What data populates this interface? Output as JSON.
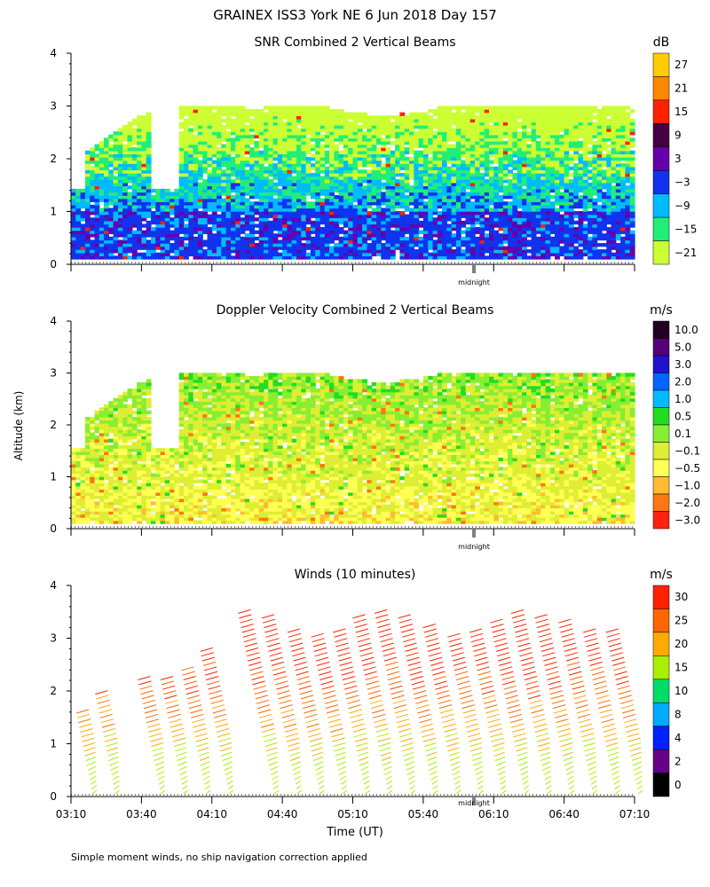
{
  "figure_title": "GRAINEX ISS3 York NE   6 Jun 2018 Day 157",
  "y_axis_label": "Altitude (km)",
  "x_axis_label": "Time (UT)",
  "midnight_label": "midnight",
  "footnote": "Simple moment winds, no ship navigation correction applied",
  "colors": {
    "axis": "#000000",
    "background": "#ffffff"
  },
  "chart_data": [
    {
      "type": "heatmap",
      "title": "SNR Combined 2 Vertical Beams",
      "ylabel": "Altitude (km)",
      "ylim": [
        0,
        4
      ],
      "yticks": [
        "0",
        "1",
        "2",
        "3",
        "4"
      ],
      "xlim": [
        "03:10",
        "07:10"
      ],
      "colorbar": {
        "unit": "dB",
        "labels": [
          "27",
          "21",
          "15",
          "9",
          "3",
          "−3",
          "−9",
          "−15",
          "−21"
        ],
        "colors": [
          "#ffcc00",
          "#ff8800",
          "#ff2200",
          "#440044",
          "#6600aa",
          "#1133ee",
          "#00bbff",
          "#22ee77",
          "#ccff33"
        ]
      }
    },
    {
      "type": "heatmap",
      "title": "Doppler Velocity Combined 2 Vertical Beams",
      "ylabel": "Altitude (km)",
      "ylim": [
        0,
        4
      ],
      "yticks": [
        "0",
        "1",
        "2",
        "3",
        "4"
      ],
      "xlim": [
        "03:10",
        "07:10"
      ],
      "colorbar": {
        "unit": "m/s",
        "labels": [
          "10.0",
          "5.0",
          "3.0",
          "2.0",
          "1.0",
          "0.5",
          "0.1",
          "−0.1",
          "−0.5",
          "−1.0",
          "−2.0",
          "−3.0"
        ],
        "colors": [
          "#220022",
          "#550077",
          "#2211cc",
          "#0066ff",
          "#00bbff",
          "#22dd22",
          "#88ee33",
          "#ddee33",
          "#ffff55",
          "#ffbb33",
          "#ff7711",
          "#ff2211"
        ]
      }
    },
    {
      "type": "wind_barbs",
      "title": "Winds (10 minutes)",
      "ylabel": "Altitude (km)",
      "ylim": [
        0,
        4
      ],
      "yticks": [
        "0",
        "1",
        "2",
        "3",
        "4"
      ],
      "xlabel": "Time (UT)",
      "xticks": [
        "03:10",
        "03:40",
        "04:10",
        "04:40",
        "05:10",
        "05:40",
        "06:10",
        "06:40",
        "07:10"
      ],
      "colorbar": {
        "unit": "m/s",
        "labels": [
          "30",
          "25",
          "20",
          "15",
          "10",
          "8",
          "4",
          "2",
          "0"
        ],
        "colors": [
          "#ff2200",
          "#ff6600",
          "#ffaa00",
          "#aaee00",
          "#00dd66",
          "#00aaff",
          "#0022ff",
          "#660088",
          "#000000"
        ]
      }
    }
  ]
}
